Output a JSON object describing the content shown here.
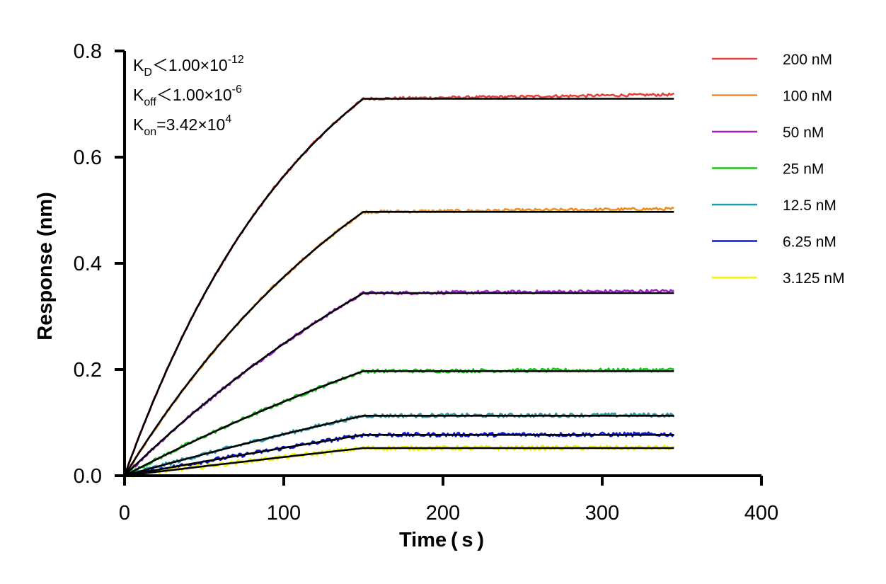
{
  "chart_data": {
    "type": "line",
    "title": "",
    "xlabel": "Time ( s )",
    "ylabel": "Response (nm)",
    "xlim": [
      0,
      400
    ],
    "ylim": [
      0,
      0.8
    ],
    "x_ticks": [
      0,
      100,
      200,
      300,
      400
    ],
    "x_tick_labels": [
      "0",
      "100",
      "200",
      "300",
      "400"
    ],
    "y_ticks": [
      0,
      0.2,
      0.4,
      0.6,
      0.8
    ],
    "y_tick_labels": [
      "0.0",
      "0.2",
      "0.4",
      "0.6",
      "0.8"
    ],
    "grid": false,
    "legend_position": "top-right",
    "association_end_time": 150,
    "end_time": 345,
    "annotations": {
      "kd": {
        "main": "K",
        "sub": "D",
        "rest": "＜1.00×10",
        "sup": "-12"
      },
      "koff": {
        "main": "K",
        "sub": "off",
        "rest": "＜1.00×10",
        "sup": "-6"
      },
      "kon": {
        "main": "K",
        "sub": "on",
        "rest": "=3.42×10",
        "sup": "4"
      }
    },
    "series": [
      {
        "name": "200 nM",
        "color": "#e8413c",
        "plateau": 0.71,
        "k_obs": 0.0085
      },
      {
        "name": "100 nM",
        "color": "#f28c1c",
        "plateau": 0.497,
        "k_obs": 0.0055
      },
      {
        "name": "50 nM",
        "color": "#a21fd6",
        "plateau": 0.344,
        "k_obs": 0.0035
      },
      {
        "name": "25 nM",
        "color": "#19c219",
        "plateau": 0.197,
        "k_obs": 0.0025
      },
      {
        "name": "12.5 nM",
        "color": "#1f9aab",
        "plateau": 0.113,
        "k_obs": 0.0015
      },
      {
        "name": "6.25 nM",
        "color": "#0a17d9",
        "plateau": 0.077,
        "k_obs": 0.0008
      },
      {
        "name": "3.125 nM",
        "color": "#f2f20a",
        "plateau": 0.052,
        "k_obs": 0.0005
      }
    ],
    "fit_color": "#000000"
  }
}
